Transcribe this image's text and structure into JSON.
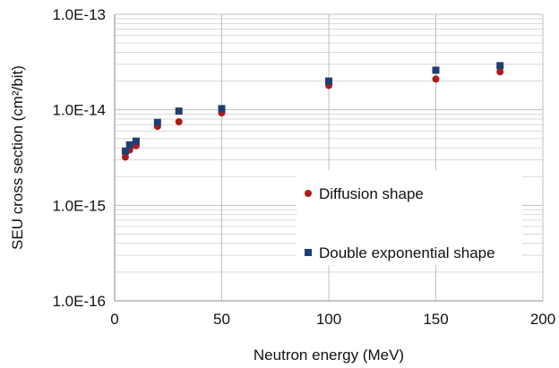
{
  "chart_data": {
    "type": "scatter",
    "title": "",
    "xlabel": "Neutron energy (MeV)",
    "ylabel": "SEU cross section (cm²/bit)",
    "xlim": [
      0,
      200
    ],
    "ylim": [
      1e-16,
      1e-13
    ],
    "y_scale": "log",
    "x_ticks": [
      0,
      50,
      100,
      150,
      200
    ],
    "x_tick_labels": [
      "0",
      "50",
      "100",
      "150",
      "200"
    ],
    "y_ticks": [
      1e-16,
      1e-15,
      1e-14,
      1e-13
    ],
    "y_tick_labels": [
      "1.0E-16",
      "1.0E-15",
      "1.0E-14",
      "1.0E-13"
    ],
    "grid": true,
    "legend_position": "center-right",
    "series": [
      {
        "name": "Diffusion shape",
        "marker": "circle",
        "color": "#b01a1a",
        "points": [
          {
            "x": 5,
            "y": 3.2e-15
          },
          {
            "x": 7,
            "y": 3.8e-15
          },
          {
            "x": 10,
            "y": 4.2e-15
          },
          {
            "x": 20,
            "y": 6.7e-15
          },
          {
            "x": 30,
            "y": 7.5e-15
          },
          {
            "x": 50,
            "y": 9.3e-15
          },
          {
            "x": 100,
            "y": 1.8e-14
          },
          {
            "x": 150,
            "y": 2.1e-14
          },
          {
            "x": 180,
            "y": 2.5e-14
          }
        ]
      },
      {
        "name": "Double exponential shape",
        "marker": "square",
        "color": "#1f3f73",
        "points": [
          {
            "x": 5,
            "y": 3.7e-15
          },
          {
            "x": 7,
            "y": 4.3e-15
          },
          {
            "x": 10,
            "y": 4.7e-15
          },
          {
            "x": 20,
            "y": 7.4e-15
          },
          {
            "x": 30,
            "y": 9.7e-15
          },
          {
            "x": 50,
            "y": 1.03e-14
          },
          {
            "x": 100,
            "y": 2e-14
          },
          {
            "x": 150,
            "y": 2.6e-14
          },
          {
            "x": 180,
            "y": 2.9e-14
          }
        ]
      }
    ]
  }
}
